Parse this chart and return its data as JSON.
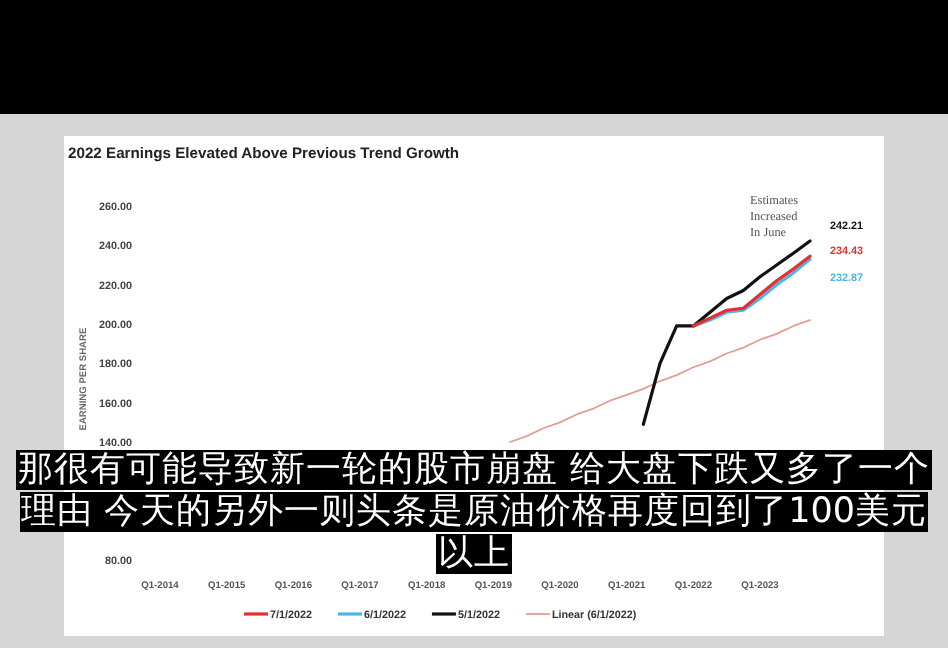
{
  "chart_data": {
    "type": "line",
    "title": "2022 Earnings Elevated Above Previous Trend Growth",
    "ylabel": "EARNING PER SHARE",
    "annotations": [
      "Estimates Increased In June",
      "那很有可能导致新一轮的股市崩盘 给大盘下跌又多了一个理由 今天的另外一则头条是原油价格再度回到了100美元以上"
    ],
    "categories": [
      "Q1-2014",
      null,
      null,
      null,
      "Q1-2015",
      null,
      null,
      null,
      "Q1-2016",
      null,
      null,
      null,
      "Q1-2017",
      null,
      null,
      null,
      "Q1-2018",
      null,
      null,
      null,
      "Q1-2019",
      null,
      null,
      null,
      "Q1-2020",
      null,
      null,
      null,
      "Q1-2021",
      null,
      null,
      null,
      "Q1-2022",
      null,
      null,
      null,
      "Q1-2023",
      null,
      null,
      null
    ],
    "series": [
      {
        "name": "7/1/2022",
        "color": "#e03030",
        "values": [
          null,
          null,
          null,
          null,
          null,
          null,
          null,
          null,
          null,
          null,
          null,
          null,
          null,
          null,
          null,
          null,
          null,
          null,
          null,
          null,
          null,
          null,
          null,
          null,
          null,
          null,
          null,
          null,
          null,
          null,
          null,
          null,
          199,
          203,
          207,
          208,
          215,
          222,
          228,
          234.43
        ],
        "value_labels": [
          null,
          null,
          null,
          null,
          null,
          null,
          null,
          null,
          null,
          null,
          null,
          null,
          null,
          null,
          null,
          null,
          null,
          null,
          null,
          null,
          null,
          null,
          null,
          null,
          null,
          null,
          null,
          null,
          null,
          null,
          null,
          null,
          null,
          null,
          null,
          null,
          null,
          null,
          null,
          "234.43"
        ]
      },
      {
        "name": "6/1/2022",
        "color": "#4fb3e8",
        "values": [
          null,
          null,
          null,
          null,
          null,
          null,
          null,
          null,
          null,
          null,
          null,
          null,
          null,
          null,
          null,
          null,
          null,
          null,
          null,
          null,
          null,
          null,
          null,
          null,
          null,
          null,
          null,
          null,
          null,
          null,
          null,
          null,
          199,
          202,
          206,
          207,
          213,
          220,
          226,
          232.87
        ],
        "value_labels": [
          null,
          null,
          null,
          null,
          null,
          null,
          null,
          null,
          null,
          null,
          null,
          null,
          null,
          null,
          null,
          null,
          null,
          null,
          null,
          null,
          null,
          null,
          null,
          null,
          null,
          null,
          null,
          null,
          null,
          null,
          null,
          null,
          null,
          null,
          null,
          null,
          null,
          null,
          null,
          "232.87"
        ]
      },
      {
        "name": "5/1/2022",
        "color": "#111111",
        "values": [
          null,
          null,
          null,
          null,
          null,
          null,
          null,
          null,
          null,
          null,
          null,
          null,
          null,
          null,
          null,
          null,
          null,
          null,
          null,
          null,
          null,
          null,
          null,
          null,
          null,
          null,
          null,
          null,
          null,
          149,
          180,
          199,
          199,
          206,
          213,
          217,
          224,
          230,
          236,
          242.21
        ],
        "value_labels": [
          null,
          null,
          null,
          null,
          null,
          null,
          null,
          null,
          null,
          null,
          null,
          null,
          null,
          null,
          null,
          null,
          null,
          null,
          null,
          null,
          null,
          null,
          null,
          null,
          null,
          null,
          null,
          null,
          null,
          null,
          null,
          null,
          null,
          null,
          null,
          null,
          null,
          null,
          null,
          "242.21"
        ]
      },
      {
        "name": "Linear (6/1/2022)",
        "color": "#e0a090",
        "values": [
          null,
          null,
          null,
          null,
          null,
          null,
          null,
          null,
          null,
          null,
          null,
          null,
          null,
          null,
          null,
          null,
          null,
          null,
          null,
          null,
          null,
          140,
          143,
          147,
          150,
          154,
          157,
          161,
          164,
          167,
          171,
          174,
          178,
          181,
          185,
          188,
          192,
          195,
          199,
          202
        ]
      }
    ],
    "ylim": [
      80,
      260
    ],
    "yticks": [
      {
        "value": 80,
        "label": "80.00"
      },
      {
        "value": 140,
        "label": "140.00"
      },
      {
        "value": 160,
        "label": "160.00"
      },
      {
        "value": 180,
        "label": "180.00"
      },
      {
        "value": 200,
        "label": "200.00"
      },
      {
        "value": 220,
        "label": "220.00"
      },
      {
        "value": 240,
        "label": "240.00"
      },
      {
        "value": 260,
        "label": "260.00"
      }
    ],
    "legend": "bottom"
  }
}
